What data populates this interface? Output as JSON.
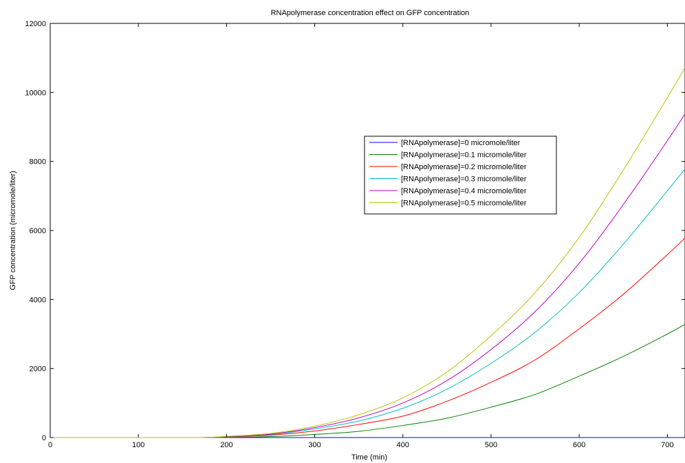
{
  "chart_data": {
    "type": "line",
    "title": "RNApolymerase concentration effect on GFP concentration",
    "xlabel": "Time (min)",
    "ylabel": "GFP concentration (micromole/liter)",
    "xlim": [
      0,
      720
    ],
    "ylim": [
      0,
      12000
    ],
    "xticks": [
      0,
      100,
      200,
      300,
      400,
      500,
      600,
      700
    ],
    "yticks": [
      0,
      2000,
      4000,
      6000,
      8000,
      10000,
      12000
    ],
    "grid": false,
    "legend_position": "upper-right",
    "x": [
      0,
      100,
      170,
      200,
      250,
      300,
      350,
      400,
      450,
      500,
      550,
      600,
      650,
      700,
      720
    ],
    "series": [
      {
        "name": "[RNApolymerase]=0 micromole/liter",
        "color": "#0000ff",
        "values": [
          0,
          0,
          0,
          0,
          0,
          0,
          0,
          0,
          0,
          0,
          0,
          0,
          0,
          0,
          0
        ]
      },
      {
        "name": "[RNApolymerase]=0.1 micromole/liter",
        "color": "#008000",
        "values": [
          0,
          0,
          0,
          5,
          30,
          90,
          180,
          350,
          560,
          880,
          1250,
          1780,
          2350,
          3000,
          3280
        ]
      },
      {
        "name": "[RNApolymerase]=0.2 micromole/liter",
        "color": "#ff0000",
        "values": [
          0,
          0,
          0,
          20,
          70,
          190,
          380,
          620,
          1050,
          1600,
          2250,
          3150,
          4150,
          5300,
          5780
        ]
      },
      {
        "name": "[RNApolymerase]=0.3 micromole/liter",
        "color": "#00bfbf",
        "values": [
          0,
          0,
          0,
          25,
          90,
          250,
          480,
          850,
          1400,
          2150,
          3050,
          4200,
          5600,
          7150,
          7780
        ]
      },
      {
        "name": "[RNApolymerase]=0.4 micromole/liter",
        "color": "#bf00bf",
        "values": [
          0,
          0,
          0,
          30,
          100,
          290,
          570,
          1000,
          1650,
          2550,
          3650,
          5050,
          6750,
          8600,
          9380
        ]
      },
      {
        "name": "[RNApolymerase]=0.5 micromole/liter",
        "color": "#bfbf00",
        "values": [
          0,
          0,
          0,
          35,
          120,
          330,
          660,
          1150,
          1900,
          2950,
          4200,
          5800,
          7750,
          9850,
          10720
        ]
      }
    ]
  }
}
